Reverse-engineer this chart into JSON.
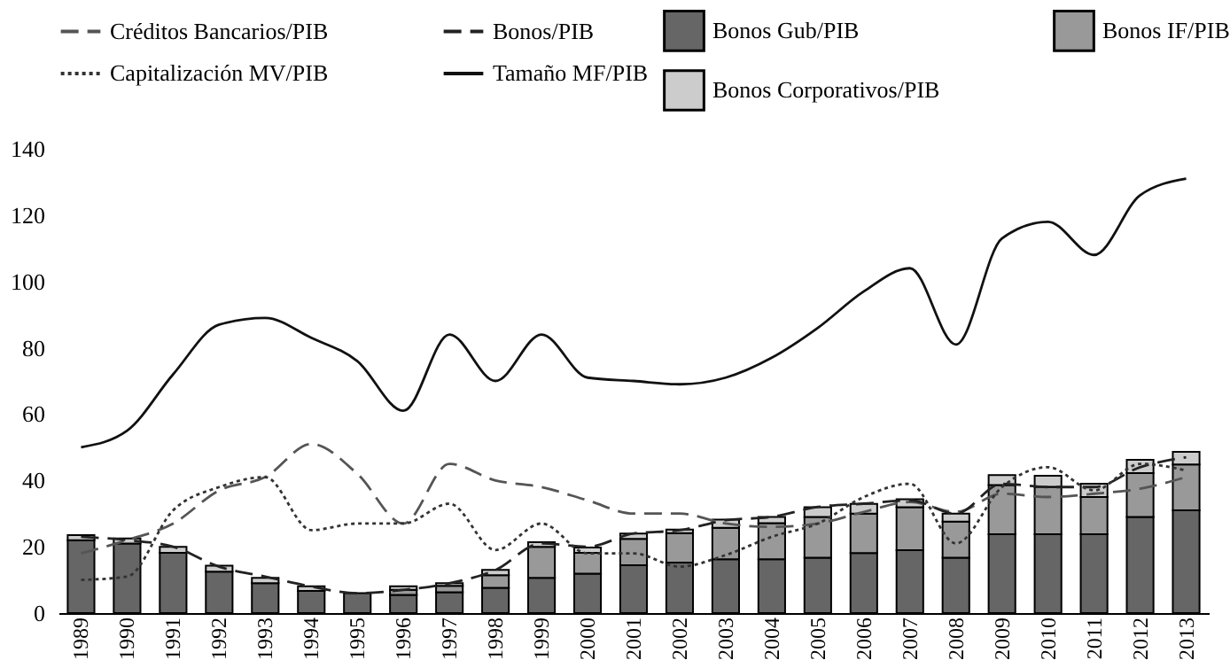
{
  "chart_data": {
    "type": "bar",
    "stacked": true,
    "legend": "top",
    "categories": [
      "1989",
      "1990",
      "1991",
      "1992",
      "1993",
      "1994",
      "1995",
      "1996",
      "1997",
      "1998",
      "1999",
      "2000",
      "2001",
      "2002",
      "2003",
      "2004",
      "2005",
      "2006",
      "2007",
      "2008",
      "2009",
      "2010",
      "2011",
      "2012",
      "2013"
    ],
    "ylim": [
      0,
      140
    ],
    "yticks": [
      0,
      20,
      40,
      60,
      80,
      100,
      120,
      140
    ],
    "series": [
      {
        "name": "Bonos Gub/PIB",
        "color": "#666666",
        "values": [
          22,
          21,
          18.2,
          12.5,
          9,
          6.7,
          6,
          5.5,
          6.3,
          7.6,
          10.6,
          11.9,
          14.4,
          15.2,
          16.2,
          16.2,
          16.7,
          18.1,
          19,
          16.7,
          23.8,
          23.8,
          23.8,
          29,
          31
        ]
      },
      {
        "name": "Bonos IF/PIB",
        "color": "#999999",
        "values": [
          0,
          0,
          0,
          0,
          0,
          0,
          0,
          1.5,
          1.9,
          3.8,
          9.4,
          6.3,
          8,
          8.9,
          9.5,
          10.9,
          12.3,
          11.9,
          12.9,
          10.9,
          14.8,
          14.3,
          11.2,
          13.2,
          13.8
        ]
      },
      {
        "name": "Bonos Corporativos/PIB",
        "color": "#cccccc",
        "values": [
          1.5,
          1.5,
          1.8,
          1.8,
          1.6,
          1.4,
          null,
          1.1,
          0.8,
          1.6,
          1.4,
          1.6,
          1.6,
          1.1,
          2.5,
          1.9,
          2.9,
          2.9,
          2.4,
          2.4,
          3,
          3.3,
          4,
          4,
          3.8
        ]
      },
      {
        "name": "Créditos Bancarios/PIB",
        "type": "line",
        "line_style": "dashed",
        "color": "#555555",
        "values": [
          18,
          22,
          27,
          37,
          41,
          51,
          42,
          27,
          45,
          40,
          38,
          34,
          30,
          30,
          27,
          26,
          27,
          30.5,
          33.5,
          30.5,
          36,
          35,
          36,
          37.5,
          41
        ]
      },
      {
        "name": "Bonos/PIB",
        "type": "line",
        "line_style": "dashed",
        "color": "#222222",
        "values": [
          23,
          22,
          20,
          14,
          11,
          8,
          6,
          7,
          9,
          13,
          21,
          20,
          24,
          25,
          28,
          29,
          32,
          33,
          34,
          30,
          39,
          38,
          38,
          44,
          47
        ]
      },
      {
        "name": "Capitalización MV/PIB",
        "type": "line",
        "line_style": "dotted",
        "color": "#333333",
        "values": [
          10,
          11,
          31,
          38,
          41,
          25,
          27,
          27,
          33,
          19,
          27,
          18,
          18,
          14,
          17.5,
          23,
          27,
          35,
          39,
          21,
          38,
          44,
          37,
          45,
          43
        ]
      },
      {
        "name": "Tamaño MF/PIB",
        "type": "line",
        "line_style": "solid",
        "color": "#111111",
        "values": [
          50,
          55,
          72,
          87,
          89,
          83,
          76,
          61,
          84,
          70,
          84,
          71,
          70,
          69,
          71,
          77,
          86,
          97,
          104,
          81,
          113,
          118,
          108,
          126,
          131
        ]
      }
    ]
  }
}
